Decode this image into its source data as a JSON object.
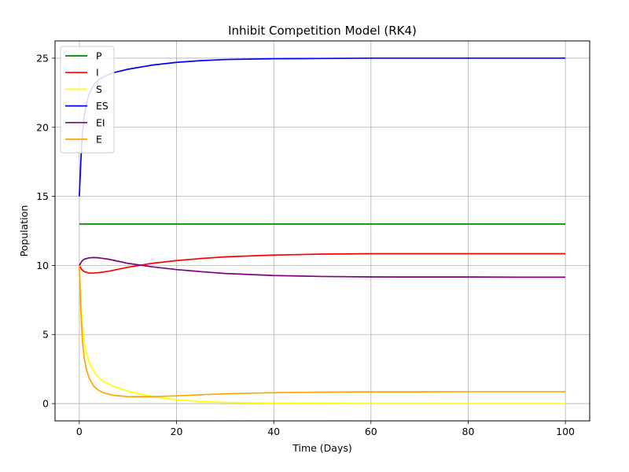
{
  "chart_data": {
    "type": "line",
    "title": "Inhibit Competition Model (RK4)",
    "xlabel": "Time (Days)",
    "ylabel": "Population",
    "xlim": [
      -5,
      105
    ],
    "ylim": [
      -1.25,
      26.25
    ],
    "xticks": [
      0,
      20,
      40,
      60,
      80,
      100
    ],
    "yticks": [
      0,
      5,
      10,
      15,
      20,
      25
    ],
    "grid": true,
    "legend_position": "top-left",
    "series": [
      {
        "name": "P",
        "color": "#008000",
        "x": [
          0,
          100
        ],
        "y": [
          13,
          13
        ]
      },
      {
        "name": "I",
        "color": "#ff0000",
        "x": [
          0,
          0.5,
          1,
          2,
          3,
          4,
          6,
          8,
          10,
          15,
          20,
          25,
          30,
          40,
          50,
          60,
          70,
          80,
          90,
          100
        ],
        "y": [
          10,
          9.7,
          9.55,
          9.45,
          9.45,
          9.48,
          9.58,
          9.72,
          9.87,
          10.15,
          10.35,
          10.5,
          10.62,
          10.75,
          10.82,
          10.85,
          10.85,
          10.85,
          10.85,
          10.85
        ]
      },
      {
        "name": "S",
        "color": "#ffff00",
        "x": [
          0,
          0.3,
          0.6,
          1,
          1.5,
          2,
          3,
          4,
          5,
          7,
          10,
          15,
          20,
          25,
          30,
          40,
          50,
          60,
          70,
          80,
          90,
          100
        ],
        "y": [
          10,
          7.5,
          5.8,
          4.5,
          3.6,
          3.0,
          2.3,
          1.9,
          1.6,
          1.25,
          0.9,
          0.5,
          0.28,
          0.15,
          0.08,
          0.03,
          0.01,
          0.0,
          0.0,
          0.0,
          0.0,
          0.0
        ]
      },
      {
        "name": "ES",
        "color": "#0000ff",
        "x": [
          0,
          0.3,
          0.6,
          1,
          1.5,
          2,
          3,
          4,
          5,
          7,
          10,
          15,
          20,
          25,
          30,
          40,
          50,
          60,
          70,
          80,
          90,
          100
        ],
        "y": [
          15,
          17.5,
          19.4,
          20.8,
          21.8,
          22.4,
          23.1,
          23.45,
          23.65,
          23.95,
          24.2,
          24.5,
          24.7,
          24.82,
          24.9,
          24.96,
          24.98,
          25,
          25,
          25,
          25,
          25
        ]
      },
      {
        "name": "EI",
        "color": "#800080",
        "x": [
          0,
          0.5,
          1,
          2,
          3,
          4,
          6,
          8,
          10,
          15,
          20,
          25,
          30,
          40,
          50,
          60,
          70,
          80,
          90,
          100
        ],
        "y": [
          10,
          10.3,
          10.45,
          10.55,
          10.57,
          10.55,
          10.45,
          10.3,
          10.15,
          9.9,
          9.7,
          9.55,
          9.42,
          9.27,
          9.2,
          9.17,
          9.16,
          9.16,
          9.15,
          9.15
        ]
      },
      {
        "name": "E",
        "color": "#ffa500",
        "x": [
          0,
          0.3,
          0.6,
          1,
          1.5,
          2,
          3,
          4,
          5,
          7,
          10,
          13,
          15,
          20,
          25,
          30,
          40,
          50,
          60,
          70,
          80,
          90,
          100
        ],
        "y": [
          10,
          6.8,
          4.7,
          3.3,
          2.4,
          1.85,
          1.25,
          0.95,
          0.78,
          0.6,
          0.5,
          0.5,
          0.5,
          0.56,
          0.64,
          0.71,
          0.79,
          0.83,
          0.85,
          0.85,
          0.86,
          0.86,
          0.86
        ]
      }
    ]
  }
}
